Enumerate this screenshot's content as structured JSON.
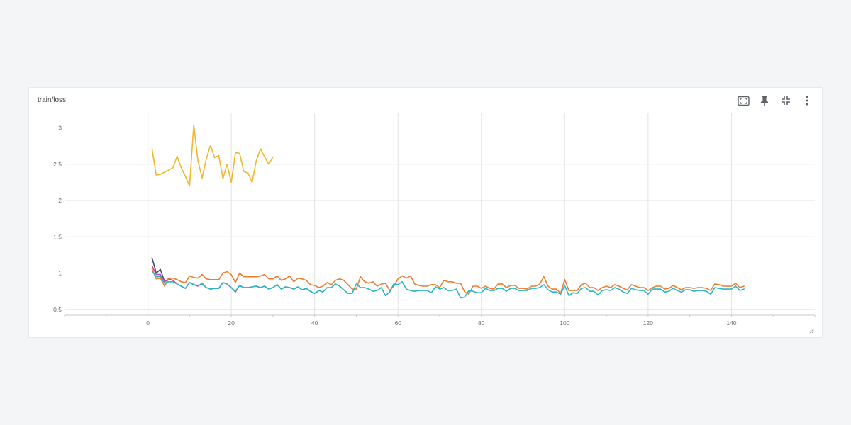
{
  "card": {
    "title": "train/loss"
  },
  "toolbar": {
    "buttons": [
      {
        "name": "fit-domain-button",
        "icon": "fit-screen-icon"
      },
      {
        "name": "pin-button",
        "icon": "pin-icon"
      },
      {
        "name": "collapse-button",
        "icon": "collapse-icon"
      },
      {
        "name": "more-button",
        "icon": "more-vert-icon"
      }
    ]
  },
  "chart_data": {
    "type": "line",
    "title": "",
    "xlabel": "",
    "ylabel": "",
    "xlim": [
      -20,
      160
    ],
    "ylim": [
      0.42,
      3.2
    ],
    "x_ticks": [
      0,
      20,
      40,
      60,
      80,
      100,
      120,
      140
    ],
    "y_ticks": [
      0.5,
      1,
      1.5,
      2,
      2.5,
      3
    ],
    "x_tick_labels": [
      "0",
      "20",
      "40",
      "60",
      "80",
      "100",
      "120",
      "140"
    ],
    "y_tick_labels": [
      "0.5",
      "1",
      "1.5",
      "2",
      "2.5",
      "3"
    ],
    "grid": true,
    "colors": {
      "yellow": "#f2b72a",
      "navy": "#425066",
      "magenta": "#c941b5",
      "orange": "#ee7d2f",
      "teal": "#29b6c6"
    },
    "series": [
      {
        "color": "#f2b72a",
        "x": [
          1,
          2,
          3,
          4,
          5,
          6,
          7,
          8,
          9,
          10,
          11,
          12,
          13,
          14,
          15,
          16,
          17,
          18,
          19,
          20,
          21,
          22,
          23,
          24,
          25,
          26,
          27,
          28,
          29,
          30
        ],
        "y": [
          2.71,
          2.35,
          2.36,
          2.39,
          2.42,
          2.45,
          2.61,
          2.45,
          2.33,
          2.2,
          3.04,
          2.55,
          2.31,
          2.57,
          2.76,
          2.59,
          2.62,
          2.3,
          2.5,
          2.25,
          2.66,
          2.65,
          2.4,
          2.38,
          2.25,
          2.55,
          2.71,
          2.6,
          2.5,
          2.6
        ]
      },
      {
        "color": "#425066",
        "x": [
          1,
          2,
          3,
          4,
          5
        ],
        "y": [
          1.21,
          1.0,
          1.05,
          0.88,
          0.92
        ]
      },
      {
        "color": "#c941b5",
        "x": [
          1,
          2,
          3,
          4,
          5,
          6,
          7,
          8,
          9,
          10,
          11,
          12,
          13,
          14,
          15,
          16,
          17,
          18,
          19,
          20,
          21,
          22,
          23,
          24,
          25,
          26,
          27,
          28,
          29,
          30,
          31,
          32,
          33,
          34,
          35,
          36,
          37,
          38,
          39,
          40
        ],
        "y": [
          1.1,
          0.98,
          0.98,
          0.88,
          0.92,
          0.9,
          0.85,
          0.82,
          0.79,
          0.87,
          0.84,
          0.82,
          0.86,
          0.8,
          0.78,
          0.79,
          0.79,
          0.87,
          0.85,
          0.8,
          0.74,
          0.83,
          0.8,
          0.8,
          0.81,
          0.82,
          0.8,
          0.82,
          0.78,
          0.8,
          0.84,
          0.78,
          0.81,
          0.8,
          0.78,
          0.81,
          0.77,
          0.79,
          0.75,
          0.72
        ]
      },
      {
        "color": "#ee7d2f",
        "x": [
          1,
          2,
          3,
          4,
          5,
          6,
          7,
          8,
          9,
          10,
          11,
          12,
          13,
          14,
          15,
          16,
          17,
          18,
          19,
          20,
          21,
          22,
          23,
          24,
          25,
          26,
          27,
          28,
          29,
          30,
          31,
          32,
          33,
          34,
          35,
          36,
          37,
          38,
          39,
          40,
          41,
          42,
          43,
          44,
          45,
          46,
          47,
          48,
          49,
          50,
          51,
          52,
          53,
          54,
          55,
          56,
          57,
          58,
          59,
          60,
          61,
          62,
          63,
          64,
          65,
          66,
          67,
          68,
          69,
          70,
          71,
          72,
          73,
          74,
          75,
          76,
          77,
          78,
          79,
          80,
          81,
          82,
          83,
          84,
          85,
          86,
          87,
          88,
          89,
          90,
          91,
          92,
          93,
          94,
          95,
          96,
          97,
          98,
          99,
          100,
          101,
          102,
          103,
          104,
          105,
          106,
          107,
          108,
          109,
          110,
          111,
          112,
          113,
          114,
          115,
          116,
          117,
          118,
          119,
          120,
          121,
          122,
          123,
          124,
          125,
          126,
          127,
          128,
          129,
          130,
          131,
          132,
          133,
          134,
          135,
          136,
          137,
          138,
          139,
          140,
          141,
          142,
          143
        ],
        "y": [
          1.06,
          0.92,
          0.93,
          0.82,
          0.93,
          0.93,
          0.91,
          0.88,
          0.87,
          0.96,
          0.94,
          0.93,
          0.98,
          0.92,
          0.91,
          0.91,
          0.91,
          1.0,
          1.02,
          0.98,
          0.87,
          1.0,
          0.95,
          0.95,
          0.95,
          0.95,
          0.96,
          0.98,
          0.92,
          0.92,
          0.96,
          0.9,
          0.92,
          0.96,
          0.88,
          0.93,
          0.92,
          0.9,
          0.84,
          0.83,
          0.8,
          0.82,
          0.87,
          0.84,
          0.9,
          0.92,
          0.9,
          0.84,
          0.78,
          0.78,
          0.95,
          0.88,
          0.86,
          0.88,
          0.82,
          0.85,
          0.86,
          0.76,
          0.82,
          0.92,
          0.96,
          0.93,
          0.96,
          0.85,
          0.83,
          0.82,
          0.82,
          0.84,
          0.84,
          0.8,
          0.9,
          0.88,
          0.88,
          0.86,
          0.86,
          0.74,
          0.71,
          0.82,
          0.82,
          0.79,
          0.82,
          0.79,
          0.78,
          0.85,
          0.85,
          0.8,
          0.83,
          0.83,
          0.79,
          0.79,
          0.78,
          0.82,
          0.82,
          0.85,
          0.95,
          0.82,
          0.78,
          0.78,
          0.72,
          0.91,
          0.76,
          0.76,
          0.76,
          0.84,
          0.86,
          0.8,
          0.8,
          0.76,
          0.8,
          0.82,
          0.8,
          0.84,
          0.82,
          0.79,
          0.77,
          0.84,
          0.82,
          0.8,
          0.8,
          0.76,
          0.8,
          0.82,
          0.82,
          0.78,
          0.79,
          0.83,
          0.8,
          0.77,
          0.8,
          0.8,
          0.79,
          0.8,
          0.8,
          0.79,
          0.76,
          0.85,
          0.84,
          0.82,
          0.82,
          0.82,
          0.86,
          0.8,
          0.82
        ]
      },
      {
        "color": "#29b6c6",
        "x": [
          1,
          2,
          3,
          4,
          5,
          6,
          7,
          8,
          9,
          10,
          11,
          12,
          13,
          14,
          15,
          16,
          17,
          18,
          19,
          20,
          21,
          22,
          23,
          24,
          25,
          26,
          27,
          28,
          29,
          30,
          31,
          32,
          33,
          34,
          35,
          36,
          37,
          38,
          39,
          40,
          41,
          42,
          43,
          44,
          45,
          46,
          47,
          48,
          49,
          50,
          51,
          52,
          53,
          54,
          55,
          56,
          57,
          58,
          59,
          60,
          61,
          62,
          63,
          64,
          65,
          66,
          67,
          68,
          69,
          70,
          71,
          72,
          73,
          74,
          75,
          76,
          77,
          78,
          79,
          80,
          81,
          82,
          83,
          84,
          85,
          86,
          87,
          88,
          89,
          90,
          91,
          92,
          93,
          94,
          95,
          96,
          97,
          98,
          99,
          100,
          101,
          102,
          103,
          104,
          105,
          106,
          107,
          108,
          109,
          110,
          111,
          112,
          113,
          114,
          115,
          116,
          117,
          118,
          119,
          120,
          121,
          122,
          123,
          124,
          125,
          126,
          127,
          128,
          129,
          130,
          131,
          132,
          133,
          134,
          135,
          136,
          137,
          138,
          139,
          140,
          141,
          142,
          143
        ],
        "y": [
          1.03,
          0.95,
          0.95,
          0.86,
          0.88,
          0.88,
          0.85,
          0.82,
          0.79,
          0.87,
          0.84,
          0.83,
          0.85,
          0.8,
          0.78,
          0.79,
          0.79,
          0.87,
          0.85,
          0.8,
          0.75,
          0.83,
          0.8,
          0.8,
          0.81,
          0.82,
          0.8,
          0.82,
          0.78,
          0.8,
          0.84,
          0.78,
          0.81,
          0.8,
          0.78,
          0.81,
          0.77,
          0.79,
          0.75,
          0.72,
          0.76,
          0.74,
          0.8,
          0.8,
          0.85,
          0.82,
          0.77,
          0.72,
          0.72,
          0.85,
          0.8,
          0.8,
          0.78,
          0.75,
          0.76,
          0.8,
          0.69,
          0.74,
          0.85,
          0.84,
          0.88,
          0.78,
          0.76,
          0.75,
          0.76,
          0.76,
          0.76,
          0.73,
          0.81,
          0.78,
          0.8,
          0.76,
          0.76,
          0.78,
          0.66,
          0.67,
          0.76,
          0.75,
          0.73,
          0.73,
          0.79,
          0.76,
          0.76,
          0.79,
          0.79,
          0.75,
          0.79,
          0.79,
          0.76,
          0.76,
          0.76,
          0.79,
          0.79,
          0.8,
          0.84,
          0.77,
          0.74,
          0.74,
          0.71,
          0.83,
          0.69,
          0.73,
          0.72,
          0.79,
          0.8,
          0.75,
          0.75,
          0.7,
          0.76,
          0.77,
          0.76,
          0.8,
          0.78,
          0.74,
          0.72,
          0.79,
          0.77,
          0.76,
          0.76,
          0.71,
          0.78,
          0.78,
          0.78,
          0.74,
          0.75,
          0.79,
          0.76,
          0.74,
          0.77,
          0.77,
          0.75,
          0.76,
          0.76,
          0.75,
          0.71,
          0.8,
          0.79,
          0.78,
          0.78,
          0.78,
          0.82,
          0.76,
          0.78
        ]
      }
    ]
  }
}
